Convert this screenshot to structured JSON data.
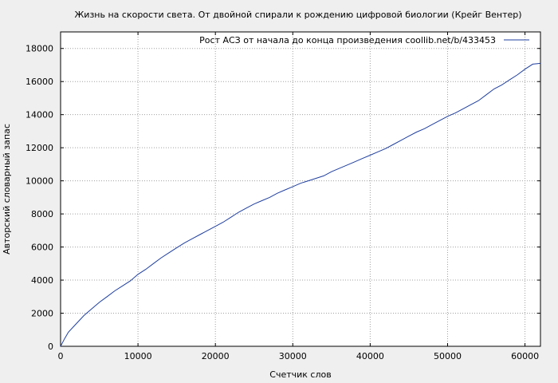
{
  "chart_data": {
    "type": "line",
    "title": "Жизнь на скорости света. От двойной спирали к рождению цифровой биологии (Крейг Вентер)",
    "xlabel": "Счетчик слов",
    "ylabel": "Авторский словарный запас",
    "xlim": [
      0,
      62000
    ],
    "ylim": [
      0,
      19000
    ],
    "xticks": [
      0,
      10000,
      20000,
      30000,
      40000,
      50000,
      60000
    ],
    "yticks": [
      0,
      2000,
      4000,
      6000,
      8000,
      10000,
      12000,
      14000,
      16000,
      18000
    ],
    "grid": true,
    "legend_position": "top-right",
    "colors": {
      "series": "#1f3f9f",
      "background": "#efefef",
      "plot_area": "#ffffff",
      "grid": "#a0a0a0"
    },
    "series": [
      {
        "name": "Рост АСЗ от начала до конца произведения coollib.net/b/433453",
        "x": [
          0,
          500,
          1000,
          2000,
          3000,
          4000,
          5000,
          6000,
          7000,
          8000,
          9000,
          10000,
          11000,
          12000,
          13000,
          14000,
          15000,
          16000,
          17000,
          18000,
          19000,
          20000,
          21000,
          22000,
          23000,
          24000,
          25000,
          26000,
          27000,
          28000,
          29000,
          30000,
          31000,
          32000,
          33000,
          34000,
          35000,
          36000,
          37000,
          38000,
          39000,
          40000,
          41000,
          42000,
          43000,
          44000,
          45000,
          46000,
          47000,
          48000,
          49000,
          50000,
          51000,
          52000,
          53000,
          54000,
          55000,
          56000,
          57000,
          58000,
          59000,
          60000,
          61000,
          62000
        ],
        "y": [
          0,
          450,
          850,
          1350,
          1850,
          2250,
          2650,
          3000,
          3350,
          3650,
          3950,
          4350,
          4650,
          5000,
          5350,
          5650,
          5950,
          6250,
          6500,
          6750,
          7000,
          7250,
          7500,
          7800,
          8100,
          8350,
          8600,
          8800,
          9000,
          9250,
          9450,
          9650,
          9850,
          10000,
          10150,
          10300,
          10550,
          10750,
          10950,
          11150,
          11350,
          11550,
          11750,
          11950,
          12200,
          12450,
          12700,
          12950,
          13150,
          13400,
          13650,
          13900,
          14100,
          14350,
          14600,
          14850,
          15200,
          15550,
          15800,
          16100,
          16400,
          16750,
          17050,
          17100
        ]
      }
    ]
  }
}
